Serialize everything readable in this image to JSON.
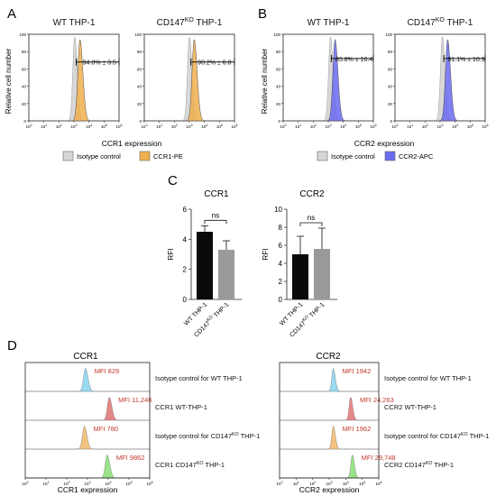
{
  "panel_labels": {
    "a": "A",
    "b": "B",
    "c": "C",
    "d": "D"
  },
  "colors": {
    "isotype": "#d6d6d6",
    "ccr1_pe": "#f0b04e",
    "ccr2_apc": "#6b6af0",
    "bar_wt": "#0a0a0a",
    "bar_ko": "#9a9a9a",
    "d_blue": "#8fd6f0",
    "d_red": "#e07c7c",
    "d_orange": "#f2bd72",
    "d_green": "#8ee07c",
    "mfi_text": "#c0392b"
  },
  "chart_data": [
    {
      "id": "A",
      "type": "histogram",
      "xlabel": "CCR1 expression",
      "ylabel": "Relative cell number",
      "x_ticks": [
        "10^0",
        "10^1",
        "10^2",
        "10^3",
        "10^4",
        "10^5",
        "10^6"
      ],
      "y_ticks": [
        "0",
        "20",
        "40",
        "60",
        "80",
        "100"
      ],
      "xlim": [
        0,
        6
      ],
      "ylim": [
        0,
        100
      ],
      "legend": [
        {
          "label": "Isotype control",
          "color": "#d6d6d6"
        },
        {
          "label": "CCR1-PE",
          "color": "#f0b04e"
        }
      ],
      "subplots": [
        {
          "title_main": "WT THP-1",
          "title_sup": "",
          "title_rest": "",
          "isotype_peak_log": 3.05,
          "stain_peak_log": 3.4,
          "stain_color": "#f0b04e",
          "gate": [
            3.15,
            6.0
          ],
          "gate_y": 68,
          "gate_label": "94.0% ± 3.5"
        },
        {
          "title_main": "CD147",
          "title_sup": "KO",
          "title_rest": " THP-1",
          "isotype_peak_log": 3.0,
          "stain_peak_log": 3.32,
          "stain_color": "#f0b04e",
          "gate": [
            3.1,
            6.0
          ],
          "gate_y": 68,
          "gate_label": "90.2% ± 6.8"
        }
      ]
    },
    {
      "id": "B",
      "type": "histogram",
      "xlabel": "CCR2 expression",
      "ylabel": "Relative cell number",
      "x_ticks": [
        "10^0",
        "10^1",
        "10^2",
        "10^3",
        "10^4",
        "10^5",
        "10^6"
      ],
      "y_ticks": [
        "0",
        "20",
        "40",
        "60",
        "80",
        "100"
      ],
      "xlim": [
        0,
        6
      ],
      "ylim": [
        0,
        100
      ],
      "legend": [
        {
          "label": "Isotype control",
          "color": "#d6d6d6"
        },
        {
          "label": "CCR2-APC",
          "color": "#6b6af0"
        }
      ],
      "subplots": [
        {
          "title_main": "WT THP-1",
          "title_sup": "",
          "title_rest": "",
          "isotype_peak_log": 3.15,
          "stain_peak_log": 3.45,
          "stain_color": "#6b6af0",
          "gate": [
            3.2,
            6.0
          ],
          "gate_y": 72,
          "gate_label": "85.8% ± 16.4"
        },
        {
          "title_main": "CD147",
          "title_sup": "KO",
          "title_rest": " THP-1",
          "isotype_peak_log": 3.15,
          "stain_peak_log": 3.5,
          "stain_color": "#6b6af0",
          "gate": [
            3.25,
            6.0
          ],
          "gate_y": 72,
          "gate_label": "91.1% ± 10.9"
        }
      ]
    },
    {
      "id": "C",
      "type": "bar",
      "subplots": [
        {
          "title": "CCR1",
          "ylabel": "RFI",
          "ylim": [
            0,
            6
          ],
          "y_ticks": [
            "0",
            "2",
            "4",
            "6"
          ],
          "categories": [
            "WT THP-1",
            "CD147KO THP-1"
          ],
          "values": [
            4.5,
            3.3
          ],
          "errors": [
            0.4,
            0.6
          ],
          "significance": "ns"
        },
        {
          "title": "CCR2",
          "ylabel": "RFI",
          "ylim": [
            0,
            10
          ],
          "y_ticks": [
            "0",
            "2",
            "4",
            "6",
            "8",
            "10"
          ],
          "categories": [
            "WT THP-1",
            "CD147KO THP-1"
          ],
          "values": [
            5.0,
            5.6
          ],
          "errors": [
            2.0,
            2.3
          ],
          "significance": "ns"
        }
      ]
    },
    {
      "id": "D",
      "type": "histogram-stack",
      "subplots": [
        {
          "title": "CCR1",
          "xlabel": "CCR1 expression",
          "x_ticks": [
            "10^0",
            "10^1",
            "10^2",
            "10^3",
            "10^4",
            "10^5",
            "10^6"
          ],
          "rows": [
            {
              "mfi": "MFI 829",
              "label_main": "Isotype control for WT THP-1",
              "label_sup": "",
              "label_rest": "",
              "peak_log": 2.9,
              "color": "#8fd6f0"
            },
            {
              "mfi": "MFI 11,246",
              "label_main": "CCR1 WT-THP-1",
              "label_sup": "",
              "label_rest": "",
              "peak_log": 4.05,
              "color": "#e07c7c"
            },
            {
              "mfi": "MFI 780",
              "label_main": "Isotype control for CD147",
              "label_sup": "KO",
              "label_rest": " THP-1",
              "peak_log": 2.85,
              "color": "#f2bd72"
            },
            {
              "mfi": "MFI 9862",
              "label_main": "CCR1 CD147",
              "label_sup": "KO",
              "label_rest": " THP-1",
              "peak_log": 3.95,
              "color": "#8ee07c"
            }
          ]
        },
        {
          "title": "CCR2",
          "xlabel": "CCR2 expression",
          "x_ticks": [
            "10^0",
            "10^1",
            "10^2",
            "10^3",
            "10^4",
            "10^5",
            "10^6"
          ],
          "rows": [
            {
              "mfi": "MFI 1942",
              "label_main": "Isotype control for WT THP-1",
              "label_sup": "",
              "label_rest": "",
              "peak_log": 3.25,
              "color": "#8fd6f0"
            },
            {
              "mfi": "MFI 24,263",
              "label_main": "CCR2 WT-THP-1",
              "label_sup": "",
              "label_rest": "",
              "peak_log": 4.3,
              "color": "#e07c7c"
            },
            {
              "mfi": "MFI 1962",
              "label_main": "Isotype control for CD147",
              "label_sup": "KO",
              "label_rest": " THP-1",
              "peak_log": 3.25,
              "color": "#f2bd72"
            },
            {
              "mfi": "MFI 29,748",
              "label_main": "CCR2 CD147",
              "label_sup": "KO",
              "label_rest": " THP-1",
              "peak_log": 4.4,
              "color": "#8ee07c"
            }
          ]
        }
      ]
    }
  ]
}
